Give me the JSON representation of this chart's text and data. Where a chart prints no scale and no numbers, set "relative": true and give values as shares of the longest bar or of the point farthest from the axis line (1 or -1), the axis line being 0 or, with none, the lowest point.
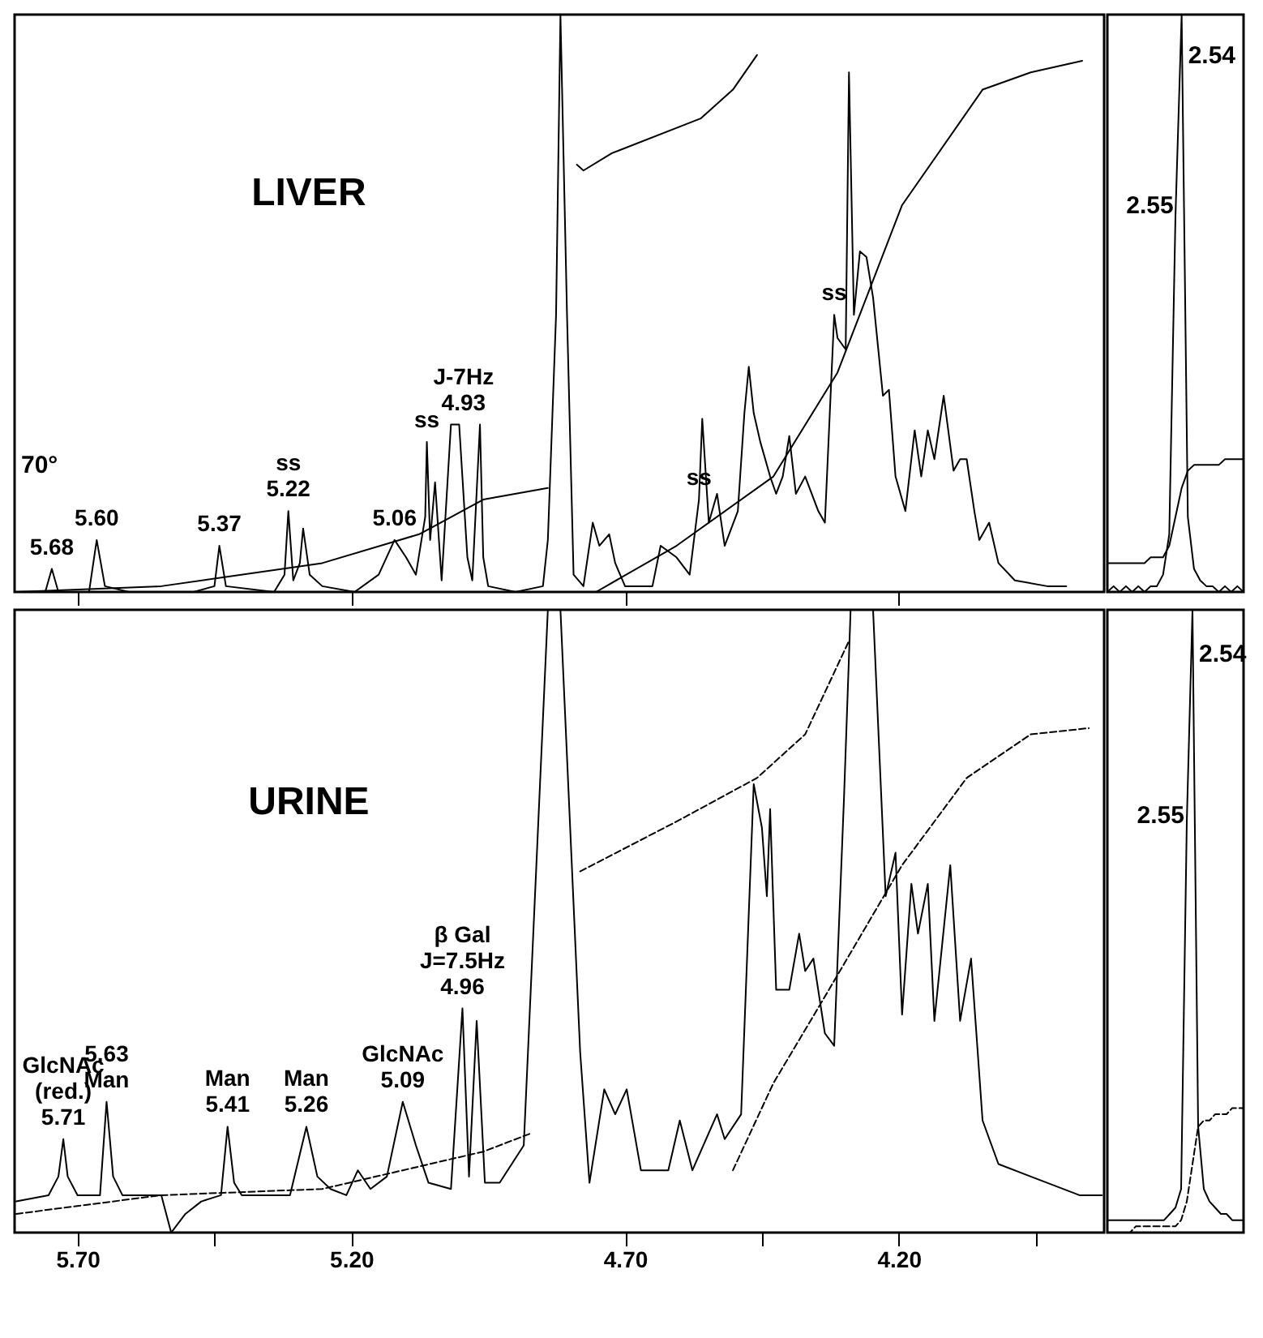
{
  "chart_data": [
    {
      "type": "line",
      "title": "LIVER",
      "relative": true,
      "xlim": [
        5.815,
        3.825
      ],
      "xticks": [
        {
          "value": 5.7,
          "label": null
        },
        {
          "value": 5.2,
          "label": null
        },
        {
          "value": 4.7,
          "label": null
        },
        {
          "value": 4.2,
          "label": null
        }
      ],
      "tick_labels": false,
      "series": [
        {
          "color": "#000000",
          "x": [
            5.806,
            5.759,
            5.747,
            5.735,
            5.679,
            5.665,
            5.65,
            5.606,
            5.488,
            5.45,
            5.441,
            5.429,
            5.341,
            5.322,
            5.315,
            5.306,
            5.294,
            5.288,
            5.276,
            5.253,
            5.194,
            5.15,
            5.121,
            5.1,
            5.082,
            5.065,
            5.062,
            5.056,
            5.047,
            5.035,
            5.018,
            5.003,
            4.988,
            4.979,
            4.965,
            4.959,
            4.95,
            4.9,
            4.85,
            4.841,
            4.826,
            4.818,
            4.806,
            4.794,
            4.776,
            4.759,
            4.747,
            4.729,
            4.718,
            4.7,
            4.65,
            4.635,
            4.606,
            4.582,
            4.565,
            4.559,
            4.547,
            4.532,
            4.518,
            4.494,
            4.482,
            4.474,
            4.465,
            4.453,
            4.435,
            4.424,
            4.412,
            4.4,
            4.388,
            4.371,
            4.347,
            4.335,
            4.318,
            4.312,
            4.297,
            4.291,
            4.282,
            4.271,
            4.259,
            4.247,
            4.229,
            4.218,
            4.206,
            4.188,
            4.171,
            4.159,
            4.147,
            4.135,
            4.118,
            4.1,
            4.088,
            4.076,
            4.062,
            4.053,
            4.035,
            4.018,
            3.988,
            3.929,
            3.894
          ],
          "values": [
            0,
            0,
            0.04,
            0,
            0,
            0.09,
            0.01,
            0,
            0,
            0.01,
            0.08,
            0.01,
            0,
            0.03,
            0.14,
            0.02,
            0.05,
            0.11,
            0.03,
            0.01,
            0,
            0.03,
            0.09,
            0.06,
            0.03,
            0.13,
            0.26,
            0.09,
            0.19,
            0.02,
            0.29,
            0.29,
            0.06,
            0.02,
            0.29,
            0.06,
            0.01,
            0,
            0.01,
            0.09,
            0.48,
            1,
            0.48,
            0.03,
            0.01,
            0.12,
            0.08,
            0.1,
            0.05,
            0.01,
            0.01,
            0.08,
            0.06,
            0.03,
            0.16,
            0.3,
            0.12,
            0.17,
            0.08,
            0.14,
            0.31,
            0.39,
            0.31,
            0.26,
            0.2,
            0.17,
            0.2,
            0.27,
            0.17,
            0.2,
            0.14,
            0.12,
            0.48,
            0.44,
            0.42,
            0.9,
            0.48,
            0.59,
            0.58,
            0.51,
            0.34,
            0.35,
            0.2,
            0.14,
            0.28,
            0.2,
            0.28,
            0.23,
            0.34,
            0.21,
            0.23,
            0.23,
            0.14,
            0.09,
            0.12,
            0.05,
            0.02,
            0.01,
            0.01
          ]
        },
        {
          "color": "#000000",
          "x": [
            5.812,
            5.547,
            5.253,
            5.076,
            4.959,
            4.841
          ],
          "values": [
            0,
            0.01,
            0.05,
            0.1,
            0.16,
            0.18
          ]
        },
        {
          "color": "#000000",
          "x": [
            4.788,
            4.776,
            4.724,
            4.562,
            4.503,
            4.459
          ],
          "values": [
            0.74,
            0.73,
            0.76,
            0.82,
            0.87,
            0.93
          ]
        },
        {
          "color": "#000000",
          "x": [
            4.753,
            4.606,
            4.429,
            4.312,
            4.194,
            4.047,
            3.959,
            3.865
          ],
          "values": [
            0,
            0.08,
            0.2,
            0.38,
            0.67,
            0.87,
            0.9,
            0.92
          ]
        }
      ],
      "annotations": [
        "70°",
        {
          "text": "5.68",
          "x": 5.747,
          "y": 0.04
        },
        {
          "text": "5.60",
          "x": 5.665,
          "y": 0.09
        },
        {
          "text": "5.37",
          "x": 5.441,
          "y": 0.08
        },
        {
          "text": "ss\n5.22",
          "x": 5.315,
          "y": 0.14
        },
        {
          "text": "5.06",
          "x": 5.121,
          "y": 0.09
        },
        {
          "text": "ss",
          "x": 5.062,
          "y": 0.26
        },
        {
          "text": "J-7Hz\n4.93",
          "x": 4.995,
          "y": 0.29
        },
        {
          "text": "ss",
          "x": 4.565,
          "y": 0.16
        },
        {
          "text": "ss",
          "x": 4.318,
          "y": 0.48
        }
      ]
    },
    {
      "type": "line",
      "relative": true,
      "tick_labels": false,
      "categories": [
        null,
        null,
        null,
        null,
        null,
        null,
        null,
        null,
        null,
        null,
        null,
        null,
        null,
        null,
        null,
        null,
        null,
        null,
        null,
        null,
        null,
        null,
        null
      ],
      "series": [
        {
          "color": "#000000",
          "values": [
            0,
            0.01,
            0,
            0.01,
            0,
            0.01,
            0,
            0.01,
            0.01,
            0.03,
            0.1,
            0.65,
            1,
            0.13,
            0.04,
            0.02,
            0.01,
            0.01,
            0,
            0.01,
            0,
            0.01,
            0
          ]
        },
        {
          "color": "#000000",
          "values": [
            0.05,
            0.05,
            0.05,
            0.05,
            0.05,
            0.05,
            0.05,
            0.06,
            0.06,
            0.06,
            0.08,
            0.13,
            0.18,
            0.21,
            0.22,
            0.22,
            0.22,
            0.22,
            0.22,
            0.23,
            0.23,
            0.23,
            0.23
          ]
        }
      ],
      "annotations": [
        "2.55",
        "2.54"
      ]
    },
    {
      "type": "line",
      "title": "URINE",
      "relative": true,
      "xlim": [
        5.815,
        3.825
      ],
      "xticks": [
        {
          "value": 5.7,
          "label": "5.70"
        },
        {
          "value": 5.45,
          "label": null
        },
        {
          "value": 5.2,
          "label": "5.20"
        },
        {
          "value": 4.7,
          "label": "4.70"
        },
        {
          "value": 4.45,
          "label": null
        },
        {
          "value": 4.2,
          "label": "4.20"
        },
        {
          "value": 3.95,
          "label": null
        }
      ],
      "tick_labels": "x",
      "series": [
        {
          "color": "#000000",
          "x": [
            5.812,
            5.753,
            5.735,
            5.726,
            5.718,
            5.7,
            5.659,
            5.647,
            5.635,
            5.618,
            5.547,
            5.529,
            5.503,
            5.474,
            5.438,
            5.426,
            5.414,
            5.4,
            5.312,
            5.282,
            5.262,
            5.238,
            5.209,
            5.188,
            5.165,
            5.135,
            5.106,
            5.082,
            5.059,
            5.018,
            4.997,
            4.985,
            4.971,
            4.956,
            4.929,
            4.885,
            4.841,
            4.818,
            4.782,
            4.765,
            4.738,
            4.718,
            4.697,
            4.671,
            4.621,
            4.6,
            4.577,
            4.532,
            4.518,
            4.488,
            4.465,
            4.45,
            4.441,
            4.435,
            4.424,
            4.4,
            4.382,
            4.371,
            4.356,
            4.335,
            4.318,
            4.3,
            4.288,
            4.268,
            4.247,
            4.224,
            4.206,
            4.194,
            4.177,
            4.165,
            4.147,
            4.135,
            4.106,
            4.088,
            4.068,
            4.047,
            4.018,
            3.959,
            3.87,
            3.829
          ],
          "values": [
            0.05,
            0.06,
            0.09,
            0.15,
            0.09,
            0.06,
            0.06,
            0.21,
            0.09,
            0.06,
            0.06,
            0,
            0.03,
            0.05,
            0.06,
            0.17,
            0.08,
            0.06,
            0.06,
            0.17,
            0.09,
            0.07,
            0.06,
            0.1,
            0.07,
            0.09,
            0.21,
            0.14,
            0.08,
            0.07,
            0.36,
            0.09,
            0.34,
            0.08,
            0.08,
            0.14,
            1,
            1,
            0.29,
            0.08,
            0.23,
            0.19,
            0.23,
            0.1,
            0.1,
            0.18,
            0.1,
            0.19,
            0.15,
            0.19,
            0.72,
            0.65,
            0.54,
            0.68,
            0.39,
            0.39,
            0.48,
            0.42,
            0.44,
            0.32,
            0.3,
            0.7,
            1,
            1,
            1,
            0.54,
            0.61,
            0.35,
            0.56,
            0.48,
            0.56,
            0.34,
            0.59,
            0.34,
            0.44,
            0.18,
            0.11,
            0.09,
            0.06,
            0.06
          ]
        },
        {
          "color": "#000000",
          "line_style": "dashed",
          "x": [
            5.812,
            5.547,
            5.253,
            4.959,
            4.87
          ],
          "values": [
            0.03,
            0.06,
            0.07,
            0.13,
            0.16
          ]
        },
        {
          "color": "#000000",
          "line_style": "dashed",
          "x": [
            4.782,
            4.606,
            4.459,
            4.371,
            4.291
          ],
          "values": [
            0.58,
            0.66,
            0.73,
            0.8,
            0.95
          ]
        },
        {
          "color": "#000000",
          "line_style": "dashed",
          "x": [
            4.503,
            4.429,
            4.341,
            4.194,
            4.076,
            3.959,
            3.853
          ],
          "values": [
            0.1,
            0.24,
            0.37,
            0.59,
            0.73,
            0.8,
            0.81
          ]
        }
      ],
      "annotations": [
        {
          "text": "GlcNAc\n(red.)\n5.71",
          "x": 5.726,
          "y": 0.15
        },
        {
          "text": "5.63\nMan",
          "x": 5.647,
          "y": 0.21
        },
        {
          "text": "Man\n5.41",
          "x": 5.426,
          "y": 0.17
        },
        {
          "text": "Man\n5.26",
          "x": 5.282,
          "y": 0.17
        },
        {
          "text": "GlcNAc\n5.09",
          "x": 5.106,
          "y": 0.21
        },
        {
          "text": "β Gal\nJ=7.5Hz\n4.96",
          "x": 4.997,
          "y": 0.36
        }
      ]
    },
    {
      "type": "line",
      "relative": true,
      "tick_labels": false,
      "categories": [
        null,
        null,
        null,
        null,
        null,
        null,
        null,
        null,
        null,
        null,
        null,
        null,
        null,
        null,
        null,
        null,
        null,
        null,
        null,
        null,
        null,
        null,
        null,
        null,
        null
      ],
      "series": [
        {
          "color": "#000000",
          "values": [
            0.02,
            0.02,
            0.02,
            0.02,
            0.02,
            0.02,
            0.02,
            0.02,
            0.02,
            0.02,
            0.02,
            0.03,
            0.04,
            0.07,
            0.66,
            1,
            0.17,
            0.07,
            0.05,
            0.04,
            0.03,
            0.03,
            0.02,
            0.02,
            0.02
          ]
        },
        {
          "color": "#000000",
          "line_style": "dashed",
          "values": [
            0,
            0,
            0,
            0,
            0,
            0.01,
            0.01,
            0.01,
            0.01,
            0.01,
            0.01,
            0.01,
            0.01,
            0.02,
            0.05,
            0.11,
            0.17,
            0.18,
            0.18,
            0.19,
            0.19,
            0.19,
            0.2,
            0.2,
            0.2
          ]
        }
      ],
      "annotations": [
        "2.55",
        "2.54"
      ]
    }
  ]
}
